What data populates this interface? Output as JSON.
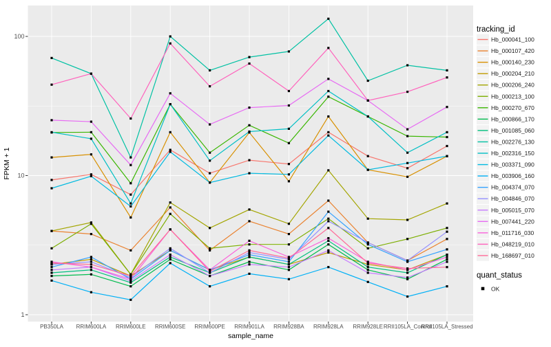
{
  "figure": {
    "background": "#FFFFFF",
    "panel_background": "#EBEBEB",
    "grid_color": "#FFFFFF",
    "axis_text_color": "#4D4D4D",
    "point_color": "#000000"
  },
  "chart_data": {
    "type": "line",
    "title": "",
    "xlabel": "sample_name",
    "ylabel": "FPKM + 1",
    "y_scale": "log10",
    "y_ticks": [
      "1",
      "10",
      "100"
    ],
    "y_tick_values": [
      1,
      10,
      100
    ],
    "y_minor_values": [
      3.1623,
      31.623
    ],
    "ylim": [
      0.9,
      165
    ],
    "grid": true,
    "legend_position": "right",
    "point_marker": "black-square",
    "categories": [
      "PB350LA",
      "RRIM600LA",
      "RRIM600LE",
      "RRIM600SE",
      "RRIM600PE",
      "RRIM901LA",
      "RRIM928BA",
      "RRIM928LA",
      "RRIM928LE",
      "RRII105LA_Control",
      "RRII105LA_Stressed"
    ],
    "series": [
      {
        "name": "Hb_000041_100",
        "color": "#F8766D",
        "values": [
          9.3,
          10.2,
          7.3,
          15.3,
          10.4,
          12.9,
          12.1,
          20.5,
          13.8,
          11.3,
          16.3
        ]
      },
      {
        "name": "Hb_000107_420",
        "color": "#EA8331",
        "values": [
          4.0,
          3.8,
          2.9,
          5.9,
          2.9,
          4.7,
          3.8,
          6.6,
          3.3,
          2.45,
          3.5
        ]
      },
      {
        "name": "Hb_000140_230",
        "color": "#D89000",
        "values": [
          13.5,
          14.2,
          5.0,
          20.5,
          8.9,
          20.4,
          9.1,
          26.6,
          11.0,
          9.8,
          13.8
        ]
      },
      {
        "name": "Hb_000204_210",
        "color": "#C09B00",
        "values": [
          2.3,
          2.5,
          1.9,
          2.9,
          2.1,
          2.6,
          2.3,
          2.8,
          2.3,
          2.1,
          2.7
        ]
      },
      {
        "name": "Hb_000206_240",
        "color": "#A3A500",
        "values": [
          4.0,
          4.6,
          1.95,
          6.4,
          4.2,
          5.7,
          4.5,
          10.9,
          4.9,
          4.8,
          6.3
        ]
      },
      {
        "name": "Hb_000213_100",
        "color": "#7CAE00",
        "values": [
          3.0,
          4.5,
          1.95,
          5.3,
          3.0,
          3.2,
          3.2,
          4.9,
          3.0,
          3.5,
          4.2
        ]
      },
      {
        "name": "Hb_000270_670",
        "color": "#39B600",
        "values": [
          20.4,
          20.5,
          8.8,
          32.6,
          14.6,
          23.0,
          17.1,
          36.9,
          26.6,
          19.2,
          18.9
        ]
      },
      {
        "name": "Hb_000866_170",
        "color": "#00BB4E",
        "values": [
          1.9,
          1.95,
          1.6,
          2.5,
          1.9,
          2.4,
          2.1,
          3.2,
          2.1,
          1.8,
          2.5
        ]
      },
      {
        "name": "Hb_001085_060",
        "color": "#00BF7D",
        "values": [
          2.0,
          2.1,
          1.7,
          2.6,
          2.0,
          2.6,
          2.3,
          3.4,
          2.2,
          2.0,
          2.7
        ]
      },
      {
        "name": "Hb_002276_130",
        "color": "#00C1A3",
        "values": [
          70,
          54,
          13.5,
          100,
          57,
          71,
          78,
          134,
          48,
          62,
          57
        ]
      },
      {
        "name": "Hb_002316_150",
        "color": "#00BFC4",
        "values": [
          20.5,
          18.4,
          6.3,
          32.6,
          12.8,
          20.7,
          21.7,
          40.5,
          26.6,
          14.6,
          20.5
        ]
      },
      {
        "name": "Hb_003371_090",
        "color": "#00BAE0",
        "values": [
          8.1,
          9.9,
          6.0,
          14.8,
          8.9,
          10.4,
          10.2,
          19.4,
          11.0,
          12.3,
          13.8
        ]
      },
      {
        "name": "Hb_003906_160",
        "color": "#00B0F6",
        "values": [
          1.76,
          1.45,
          1.28,
          2.35,
          1.6,
          1.97,
          1.8,
          2.2,
          1.72,
          1.35,
          1.6
        ]
      },
      {
        "name": "Hb_004374_070",
        "color": "#35A2FF",
        "values": [
          2.2,
          2.6,
          1.8,
          2.9,
          2.1,
          2.7,
          2.4,
          5.5,
          3.2,
          2.4,
          2.95
        ]
      },
      {
        "name": "Hb_004846_070",
        "color": "#9590FF",
        "values": [
          2.3,
          2.4,
          1.85,
          3.0,
          2.0,
          2.8,
          2.5,
          4.7,
          3.3,
          2.45,
          3.95
        ]
      },
      {
        "name": "Hb_005015_070",
        "color": "#C77CFF",
        "values": [
          2.1,
          2.2,
          1.75,
          2.7,
          1.9,
          2.3,
          2.2,
          2.9,
          2.0,
          1.85,
          2.4
        ]
      },
      {
        "name": "Hb_007441_220",
        "color": "#E76BF3",
        "values": [
          25.0,
          24.4,
          11.9,
          39.0,
          23.3,
          30.8,
          31.9,
          49.5,
          34.6,
          21.5,
          31.1
        ]
      },
      {
        "name": "Hb_011716_030",
        "color": "#FA62DB",
        "values": [
          2.4,
          2.2,
          1.8,
          4.1,
          2.1,
          3.4,
          2.6,
          3.55,
          2.4,
          2.1,
          2.6
        ]
      },
      {
        "name": "Hb_048219_010",
        "color": "#FF62BC",
        "values": [
          45,
          54,
          25.7,
          89,
          43.8,
          63.8,
          40.5,
          82.6,
          34.6,
          40,
          50.7
        ]
      },
      {
        "name": "Hb_168697_010",
        "color": "#FF6A98",
        "values": [
          2.35,
          2.3,
          1.9,
          4.1,
          2.05,
          2.9,
          2.55,
          4.2,
          2.35,
          2.15,
          2.2
        ]
      }
    ]
  },
  "legend": {
    "tracking_title": "tracking_id",
    "quant_title": "quant_status",
    "quant_items": [
      {
        "label": "OK",
        "marker": "black-square"
      }
    ]
  }
}
